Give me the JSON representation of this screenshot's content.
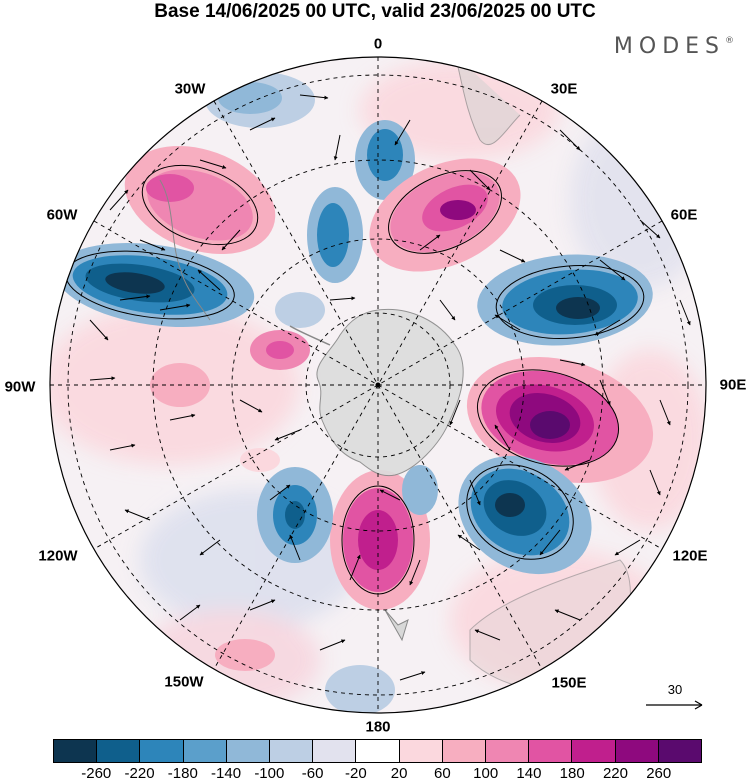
{
  "title": "Base 14/06/2025 00 UTC, valid 23/06/2025 00 UTC",
  "brand": {
    "text": "MODES",
    "mark": "®"
  },
  "longitude_labels": [
    "0",
    "30E",
    "60E",
    "90E",
    "120E",
    "150E",
    "180",
    "150W",
    "120W",
    "90W",
    "60W",
    "30W"
  ],
  "reference_vector": {
    "value": "30",
    "icon": "right-arrow-icon"
  },
  "colorbar": {
    "ticks": [
      "-260",
      "-220",
      "-180",
      "-140",
      "-100",
      "-60",
      "-20",
      "20",
      "60",
      "100",
      "140",
      "180",
      "220",
      "260"
    ],
    "colors": [
      "#0d3550",
      "#0f5f8c",
      "#2d85ba",
      "#5b9fcb",
      "#90b8d8",
      "#bdcfe4",
      "#e2e2ee",
      "#ffffff",
      "#fbd8de",
      "#f7aec0",
      "#ef86b2",
      "#e154a3",
      "#c01f8d",
      "#8e097e",
      "#5a0a6e"
    ]
  },
  "colors": {
    "land": "#d2d2d2",
    "coast": "#888888"
  }
}
